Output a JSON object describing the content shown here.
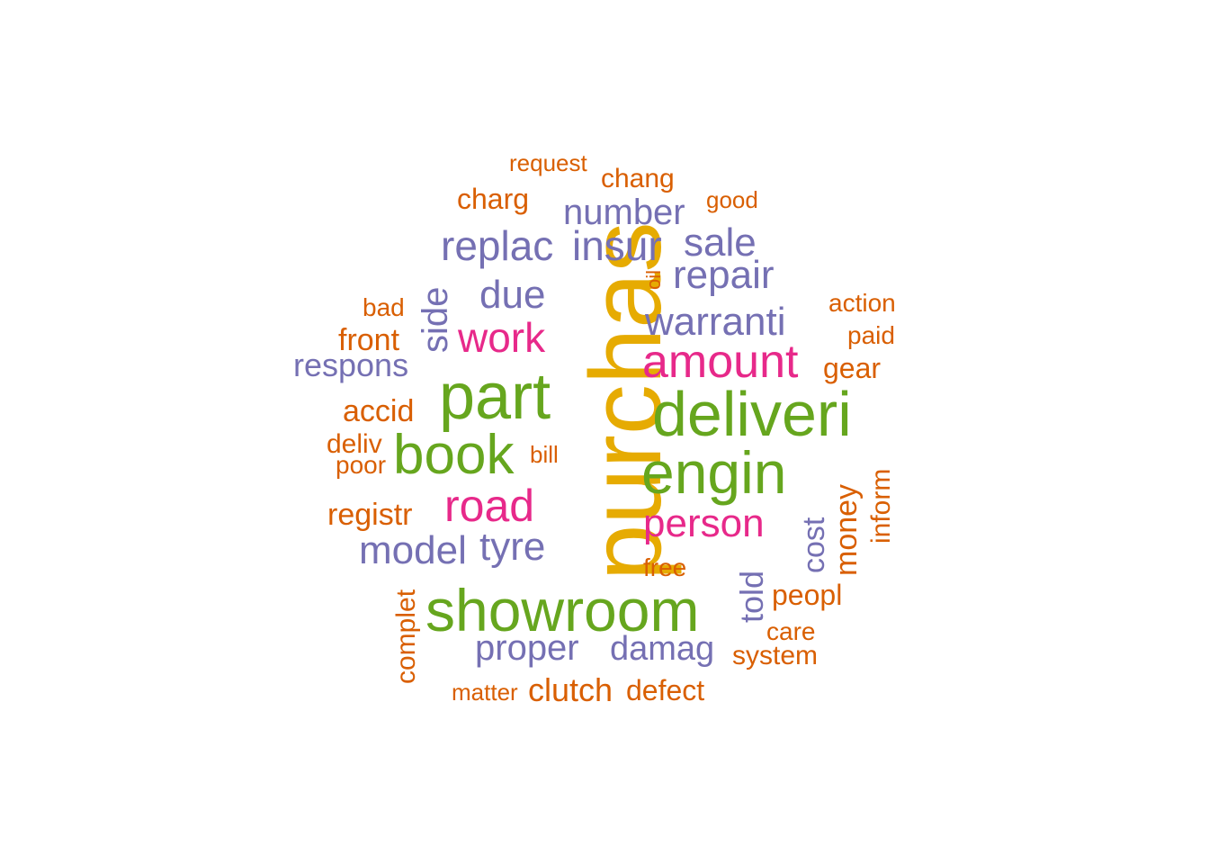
{
  "palette": {
    "orange": "#d95f02",
    "purple": "#7570b3",
    "magenta": "#e7298a",
    "green": "#66a61e",
    "gold": "#e6ab02"
  },
  "words": [
    {
      "text": "purchas",
      "color": "gold",
      "rotated": true
    },
    {
      "text": "part",
      "color": "green",
      "rotated": false
    },
    {
      "text": "deliveri",
      "color": "green",
      "rotated": false
    },
    {
      "text": "engin",
      "color": "green",
      "rotated": false
    },
    {
      "text": "showroom",
      "color": "green",
      "rotated": false
    },
    {
      "text": "book",
      "color": "green",
      "rotated": false
    },
    {
      "text": "amount",
      "color": "magenta",
      "rotated": false
    },
    {
      "text": "road",
      "color": "magenta",
      "rotated": false
    },
    {
      "text": "person",
      "color": "magenta",
      "rotated": false
    },
    {
      "text": "work",
      "color": "magenta",
      "rotated": false
    },
    {
      "text": "replac",
      "color": "purple",
      "rotated": false
    },
    {
      "text": "insur",
      "color": "purple",
      "rotated": false
    },
    {
      "text": "sale",
      "color": "purple",
      "rotated": false
    },
    {
      "text": "repair",
      "color": "purple",
      "rotated": false
    },
    {
      "text": "warranti",
      "color": "purple",
      "rotated": false
    },
    {
      "text": "due",
      "color": "purple",
      "rotated": false
    },
    {
      "text": "number",
      "color": "purple",
      "rotated": false
    },
    {
      "text": "model",
      "color": "purple",
      "rotated": false
    },
    {
      "text": "tyre",
      "color": "purple",
      "rotated": false
    },
    {
      "text": "proper",
      "color": "purple",
      "rotated": false
    },
    {
      "text": "damag",
      "color": "purple",
      "rotated": false
    },
    {
      "text": "respons",
      "color": "purple",
      "rotated": false
    },
    {
      "text": "side",
      "color": "purple",
      "rotated": true
    },
    {
      "text": "cost",
      "color": "purple",
      "rotated": true
    },
    {
      "text": "told",
      "color": "purple",
      "rotated": true
    },
    {
      "text": "clutch",
      "color": "orange",
      "rotated": false
    },
    {
      "text": "charg",
      "color": "orange",
      "rotated": false
    },
    {
      "text": "request",
      "color": "orange",
      "rotated": false
    },
    {
      "text": "chang",
      "color": "orange",
      "rotated": false
    },
    {
      "text": "good",
      "color": "orange",
      "rotated": false
    },
    {
      "text": "oil",
      "color": "orange",
      "rotated": true
    },
    {
      "text": "bad",
      "color": "orange",
      "rotated": false
    },
    {
      "text": "front",
      "color": "orange",
      "rotated": false
    },
    {
      "text": "action",
      "color": "orange",
      "rotated": false
    },
    {
      "text": "paid",
      "color": "orange",
      "rotated": false
    },
    {
      "text": "gear",
      "color": "orange",
      "rotated": false
    },
    {
      "text": "accid",
      "color": "orange",
      "rotated": false
    },
    {
      "text": "deliv",
      "color": "orange",
      "rotated": false
    },
    {
      "text": "poor",
      "color": "orange",
      "rotated": false
    },
    {
      "text": "bill",
      "color": "orange",
      "rotated": false
    },
    {
      "text": "registr",
      "color": "orange",
      "rotated": false
    },
    {
      "text": "money",
      "color": "orange",
      "rotated": true
    },
    {
      "text": "inform",
      "color": "orange",
      "rotated": true
    },
    {
      "text": "free",
      "color": "orange",
      "rotated": false
    },
    {
      "text": "peopl",
      "color": "orange",
      "rotated": false
    },
    {
      "text": "care",
      "color": "orange",
      "rotated": false
    },
    {
      "text": "system",
      "color": "orange",
      "rotated": false
    },
    {
      "text": "complet",
      "color": "orange",
      "rotated": true
    },
    {
      "text": "matter",
      "color": "orange",
      "rotated": false
    },
    {
      "text": "defect",
      "color": "orange",
      "rotated": false
    }
  ]
}
